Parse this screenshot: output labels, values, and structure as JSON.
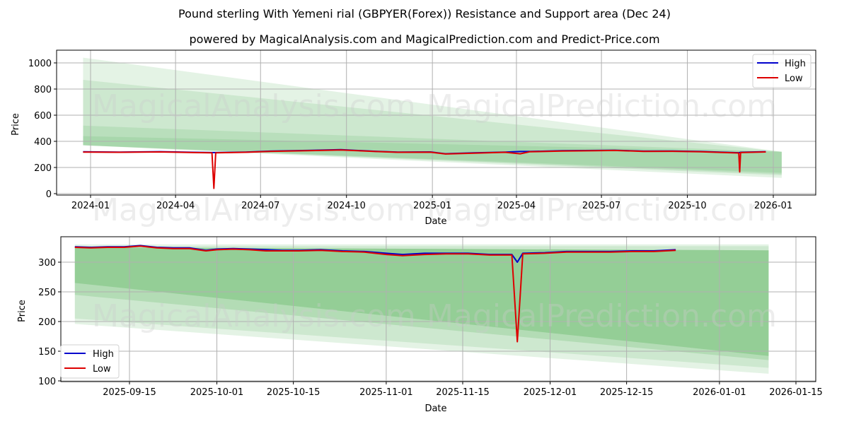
{
  "header": {
    "title": "Pound sterling With Yemeni rial (GBPYER(Forex)) Resistance and Support area (Dec 24)",
    "subtitle": "powered by MagicalAnalysis.com and MagicalPrediction.com and Predict-Price.com"
  },
  "watermark": {
    "left": "MagicalAnalysis.com",
    "right": "MagicalPrediction.com"
  },
  "colors": {
    "high": "#0000cc",
    "low": "#dd0000",
    "band": "#4caf50",
    "grid": "#b0b0b0"
  },
  "legend": {
    "high": "High",
    "low": "Low"
  },
  "chart_data": [
    {
      "type": "line",
      "title": "Pound sterling With Yemeni rial (GBPYER(Forex)) Resistance and Support area (Dec 24)",
      "xlabel": "Date",
      "ylabel": "Price",
      "x_ticks": [
        "2024-01",
        "2024-04",
        "2024-07",
        "2024-10",
        "2025-01",
        "2025-04",
        "2025-07",
        "2025-10",
        "2026-01"
      ],
      "y_ticks": [
        "0",
        "200",
        "400",
        "600",
        "800",
        "1000"
      ],
      "ylim": [
        0,
        1100
      ],
      "xlim": [
        "2023-11-15",
        "2026-02-15"
      ],
      "grid": true,
      "legend_position": "upper right",
      "series": [
        {
          "name": "High",
          "x": [
            "2023-12-24",
            "2024-02-01",
            "2024-03-15",
            "2024-04-20",
            "2024-05-10",
            "2024-05-12",
            "2024-05-14",
            "2024-06-15",
            "2024-07-15",
            "2024-08-20",
            "2024-09-25",
            "2024-11-01",
            "2024-11-25",
            "2024-12-30",
            "2025-01-15",
            "2025-02-15",
            "2025-03-20",
            "2025-04-05",
            "2025-04-15",
            "2025-05-20",
            "2025-06-25",
            "2025-07-15",
            "2025-08-15",
            "2025-09-15",
            "2025-10-15",
            "2025-11-10",
            "2025-11-25",
            "2025-11-26",
            "2025-11-27",
            "2025-12-24"
          ],
          "values": [
            320,
            318,
            321,
            316,
            314,
            314,
            314,
            318,
            326,
            330,
            336,
            324,
            318,
            319,
            305,
            312,
            318,
            322,
            322,
            328,
            330,
            332,
            325,
            326,
            322,
            316,
            313,
            314,
            316,
            321
          ]
        },
        {
          "name": "Low",
          "x": [
            "2023-12-24",
            "2024-02-01",
            "2024-03-15",
            "2024-04-20",
            "2024-05-10",
            "2024-05-12",
            "2024-05-14",
            "2024-06-15",
            "2024-07-15",
            "2024-08-20",
            "2024-09-25",
            "2024-11-01",
            "2024-11-25",
            "2024-12-30",
            "2025-01-15",
            "2025-02-15",
            "2025-03-20",
            "2025-04-05",
            "2025-04-15",
            "2025-05-20",
            "2025-06-25",
            "2025-07-15",
            "2025-08-15",
            "2025-09-15",
            "2025-10-15",
            "2025-11-10",
            "2025-11-25",
            "2025-11-26",
            "2025-11-27",
            "2025-12-24"
          ],
          "values": [
            318,
            316,
            319,
            314,
            312,
            40,
            312,
            316,
            324,
            328,
            334,
            322,
            316,
            317,
            303,
            310,
            316,
            305,
            320,
            326,
            328,
            330,
            323,
            324,
            320,
            314,
            311,
            166,
            314,
            319
          ]
        }
      ],
      "bands": [
        {
          "x": [
            "2023-12-24",
            "2026-01-10"
          ],
          "upper": [
            1040,
            320
          ],
          "lower": [
            370,
            120
          ],
          "opacity": 0.15
        },
        {
          "x": [
            "2023-12-24",
            "2026-01-10"
          ],
          "upper": [
            870,
            320
          ],
          "lower": [
            370,
            140
          ],
          "opacity": 0.15
        },
        {
          "x": [
            "2023-12-24",
            "2026-01-10"
          ],
          "upper": [
            520,
            320
          ],
          "lower": [
            370,
            150
          ],
          "opacity": 0.15
        },
        {
          "x": [
            "2023-12-24",
            "2026-01-10"
          ],
          "upper": [
            440,
            320
          ],
          "lower": [
            370,
            160
          ],
          "opacity": 0.15
        }
      ]
    },
    {
      "type": "line",
      "xlabel": "Date",
      "ylabel": "Price",
      "x_ticks": [
        "2025-09-15",
        "2025-10-01",
        "2025-10-15",
        "2025-11-01",
        "2025-11-15",
        "2025-12-01",
        "2025-12-15",
        "2026-01-01",
        "2026-01-15"
      ],
      "y_ticks": [
        "100",
        "150",
        "200",
        "250",
        "300"
      ],
      "ylim": [
        95,
        340
      ],
      "xlim": [
        "2025-08-23",
        "2026-01-17"
      ],
      "grid": true,
      "legend_position": "lower left",
      "series": [
        {
          "name": "High",
          "x": [
            "2025-09-05",
            "2025-09-08",
            "2025-09-11",
            "2025-09-14",
            "2025-09-17",
            "2025-09-20",
            "2025-09-23",
            "2025-09-26",
            "2025-09-29",
            "2025-10-01",
            "2025-10-04",
            "2025-10-07",
            "2025-10-10",
            "2025-10-13",
            "2025-10-16",
            "2025-10-20",
            "2025-10-24",
            "2025-10-28",
            "2025-11-01",
            "2025-11-04",
            "2025-11-08",
            "2025-11-12",
            "2025-11-16",
            "2025-11-20",
            "2025-11-24",
            "2025-11-25",
            "2025-11-26",
            "2025-11-30",
            "2025-12-04",
            "2025-12-08",
            "2025-12-12",
            "2025-12-16",
            "2025-12-20",
            "2025-12-24"
          ],
          "values": [
            326,
            325,
            326,
            326,
            328,
            325,
            324,
            324,
            320,
            322,
            323,
            322,
            321,
            320,
            320,
            321,
            319,
            318,
            315,
            313,
            315,
            315,
            315,
            313,
            313,
            300,
            315,
            316,
            318,
            318,
            318,
            319,
            319,
            321
          ]
        },
        {
          "name": "Low",
          "x": [
            "2025-09-05",
            "2025-09-08",
            "2025-09-11",
            "2025-09-14",
            "2025-09-17",
            "2025-09-20",
            "2025-09-23",
            "2025-09-26",
            "2025-09-29",
            "2025-10-01",
            "2025-10-04",
            "2025-10-07",
            "2025-10-10",
            "2025-10-13",
            "2025-10-16",
            "2025-10-20",
            "2025-10-24",
            "2025-10-28",
            "2025-11-01",
            "2025-11-04",
            "2025-11-08",
            "2025-11-12",
            "2025-11-16",
            "2025-11-20",
            "2025-11-24",
            "2025-11-25",
            "2025-11-26",
            "2025-11-30",
            "2025-12-04",
            "2025-12-08",
            "2025-12-12",
            "2025-12-16",
            "2025-12-20",
            "2025-12-24"
          ],
          "values": [
            325,
            324,
            325,
            325,
            327,
            324,
            323,
            323,
            319,
            321,
            322,
            321,
            319,
            319,
            319,
            320,
            318,
            317,
            313,
            311,
            313,
            314,
            314,
            312,
            312,
            166,
            314,
            315,
            317,
            317,
            317,
            318,
            318,
            320
          ]
        }
      ],
      "bands": [
        {
          "x": [
            "2025-09-05",
            "2026-01-10"
          ],
          "upper": [
            330,
            330
          ],
          "lower": [
            196,
            112
          ],
          "opacity": 0.15
        },
        {
          "x": [
            "2025-09-05",
            "2026-01-10"
          ],
          "upper": [
            327,
            327
          ],
          "lower": [
            205,
            122
          ],
          "opacity": 0.15
        },
        {
          "x": [
            "2025-09-05",
            "2026-01-10"
          ],
          "upper": [
            325,
            320
          ],
          "lower": [
            245,
            135
          ],
          "opacity": 0.2
        },
        {
          "x": [
            "2025-09-05",
            "2026-01-10"
          ],
          "upper": [
            325,
            320
          ],
          "lower": [
            265,
            142
          ],
          "opacity": 0.3
        }
      ]
    }
  ]
}
